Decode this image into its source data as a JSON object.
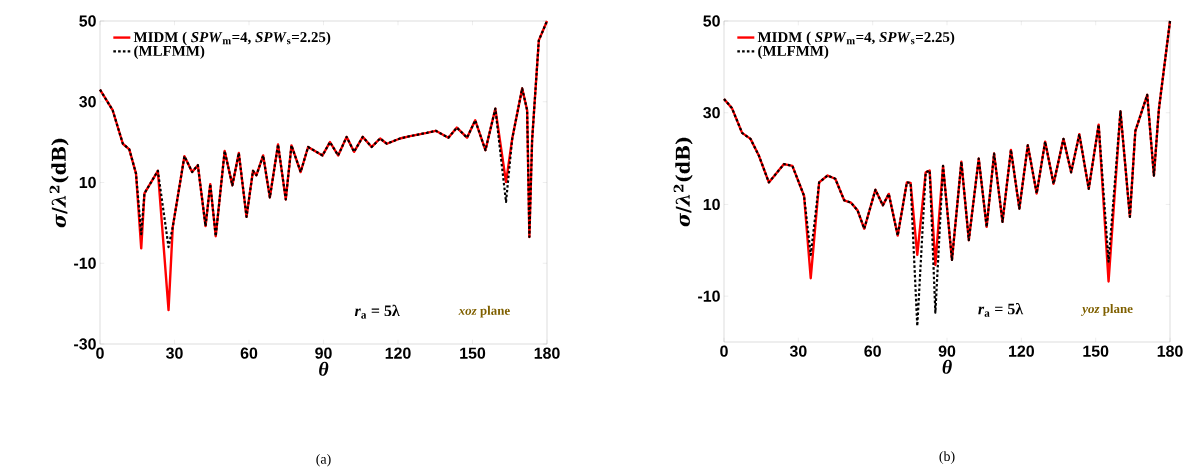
{
  "chart_data": [
    {
      "type": "line",
      "xlabel": "*θ*",
      "ylabel": "*σ*/*λ*$^{2}$(dB)",
      "xlim": [
        0,
        180
      ],
      "xticks": [
        0,
        30,
        60,
        90,
        120,
        150,
        180
      ],
      "ylim": [
        -30,
        50
      ],
      "yticks": [
        -30,
        -10,
        10,
        30,
        50
      ],
      "legend": "top left",
      "x": [
        0,
        5.1,
        9.2,
        11.8,
        14.5,
        16.6,
        17.9,
        23.3,
        27.6,
        29.3,
        34,
        37.1,
        39.4,
        42.5,
        44.4,
        46.6,
        50.2,
        53.3,
        55.9,
        59,
        61.6,
        63,
        65.7,
        68.4,
        71.7,
        74.8,
        77.1,
        80.8,
        83.8,
        89.6,
        92.6,
        95.9,
        99.3,
        102.3,
        105.8,
        109.4,
        112.8,
        115.5,
        120.8,
        124.9,
        131.6,
        135.2,
        140.3,
        143.7,
        147.8,
        151.1,
        155.2,
        159.2,
        163.5,
        166,
        170,
        172,
        172.9,
        174,
        176.7,
        180
      ],
      "series": [
        {
          "name": "MIDM ( *SPW*$_{m}$=4, *SPW*$_{s}$=2.25)",
          "color": "#ff0000",
          "line_style": "solid",
          "values": [
            33.0,
            27.9,
            19.6,
            18.2,
            12.2,
            -6.3,
            7.3,
            12.9,
            -21.6,
            -1,
            16.5,
            12.6,
            14.3,
            -0.8,
            9.6,
            -3.3,
            17.8,
            9.3,
            17.3,
            1.5,
            12.9,
            11.8,
            16.7,
            6.3,
            19.4,
            5.8,
            19.2,
            12.6,
            18.8,
            16.7,
            20,
            16.7,
            21.3,
            17.6,
            21.3,
            18.8,
            20.9,
            19.6,
            20.9,
            21.5,
            22.3,
            22.8,
            21.1,
            23.6,
            21.1,
            25.4,
            18,
            28.3,
            10.1,
            20.9,
            33.3,
            27.9,
            -3.5,
            20.5,
            45.2,
            50
          ]
        },
        {
          "name": "(MLFMM)",
          "color": "#000000",
          "line_style": "dotted",
          "values": [
            33.0,
            27.9,
            19.6,
            18.2,
            12.2,
            -2.8,
            7.3,
            12.9,
            -6,
            -1,
            16.5,
            12.6,
            14.3,
            -0.8,
            9.6,
            -3.3,
            17.8,
            9.3,
            17.3,
            1.5,
            12.9,
            11.8,
            16.7,
            6.3,
            19.4,
            5.8,
            19.2,
            12.6,
            18.8,
            16.7,
            20,
            16.7,
            21.3,
            17.6,
            21.3,
            18.8,
            20.9,
            19.6,
            20.9,
            21.5,
            22.3,
            22.8,
            21.1,
            23.6,
            21.1,
            25.4,
            18,
            28.3,
            5.2,
            20.9,
            33.3,
            27.9,
            -3.5,
            20.5,
            45.2,
            50
          ]
        }
      ],
      "annotations": [
        "*r*$_{a}$ = 5λ",
        "*xoz* plane",
        "(a)"
      ]
    },
    {
      "type": "line",
      "xlabel": "*θ*",
      "ylabel": "*σ*/*λ*$^{2}$(dB)",
      "xlim": [
        0,
        180
      ],
      "xticks": [
        0,
        30,
        60,
        90,
        120,
        150,
        180
      ],
      "ylim": [
        -20,
        50
      ],
      "yticks": [
        -10,
        10,
        30,
        50
      ],
      "legend": "top left",
      "x": [
        0,
        3.2,
        7.3,
        10.7,
        14.1,
        18.1,
        24.2,
        27.6,
        32.3,
        35,
        38.4,
        41.8,
        44.9,
        48.5,
        51.2,
        53.9,
        56.6,
        61.1,
        64.1,
        66.5,
        70.1,
        73.8,
        75.3,
        78,
        81.4,
        83,
        85.3,
        88.4,
        92,
        95.8,
        98.8,
        102.8,
        106,
        109,
        112.4,
        115.8,
        119.2,
        122.6,
        126.2,
        129.6,
        133,
        137,
        140.1,
        143.4,
        147.2,
        151.2,
        155.2,
        160,
        163.8,
        166,
        170.8,
        173.5,
        175.5,
        180
      ],
      "series": [
        {
          "name": "MIDM ( *SPW*$_{m}$=4, *SPW*$_{s}$=2.25)",
          "color": "#ff0000",
          "line_style": "solid",
          "values": [
            33,
            31,
            25.6,
            24.3,
            20.6,
            14.8,
            18.8,
            18.4,
            11.9,
            -6.1,
            14.8,
            16.3,
            15.6,
            10.9,
            10.4,
            8.7,
            4.7,
            13.2,
            9.8,
            12.3,
            3.2,
            14.8,
            14.7,
            -1,
            17,
            17.4,
            -3.2,
            18.4,
            -2.1,
            19.3,
            2.2,
            20,
            5.1,
            21.1,
            6.2,
            21.9,
            9.1,
            22.9,
            12.4,
            23.7,
            14.5,
            24.3,
            17,
            25.3,
            13.4,
            27.4,
            -6.8,
            30.3,
            7.3,
            26,
            33.9,
            16.3,
            30.7,
            50
          ]
        },
        {
          "name": "(MLFMM)",
          "color": "#000000",
          "line_style": "dotted",
          "values": [
            33,
            31,
            25.6,
            24.3,
            20.6,
            14.8,
            18.8,
            18.4,
            11.9,
            -1,
            14.8,
            16.3,
            15.6,
            10.9,
            10.4,
            8.7,
            4.7,
            13.2,
            9.8,
            12.3,
            3.2,
            14.8,
            14.7,
            -16.5,
            17,
            17.4,
            -13.6,
            18.4,
            -2.1,
            19.3,
            2.2,
            20,
            5.1,
            21.1,
            6.2,
            21.9,
            9.1,
            22.9,
            12.4,
            23.7,
            14.5,
            24.3,
            17,
            25.3,
            13.4,
            27.4,
            -2.5,
            30.3,
            7.3,
            26,
            33.9,
            16.3,
            30.7,
            50
          ]
        }
      ],
      "annotations": [
        "*r*$_{a}$ = 5λ",
        "*yoz* plane",
        "(b)"
      ]
    }
  ]
}
